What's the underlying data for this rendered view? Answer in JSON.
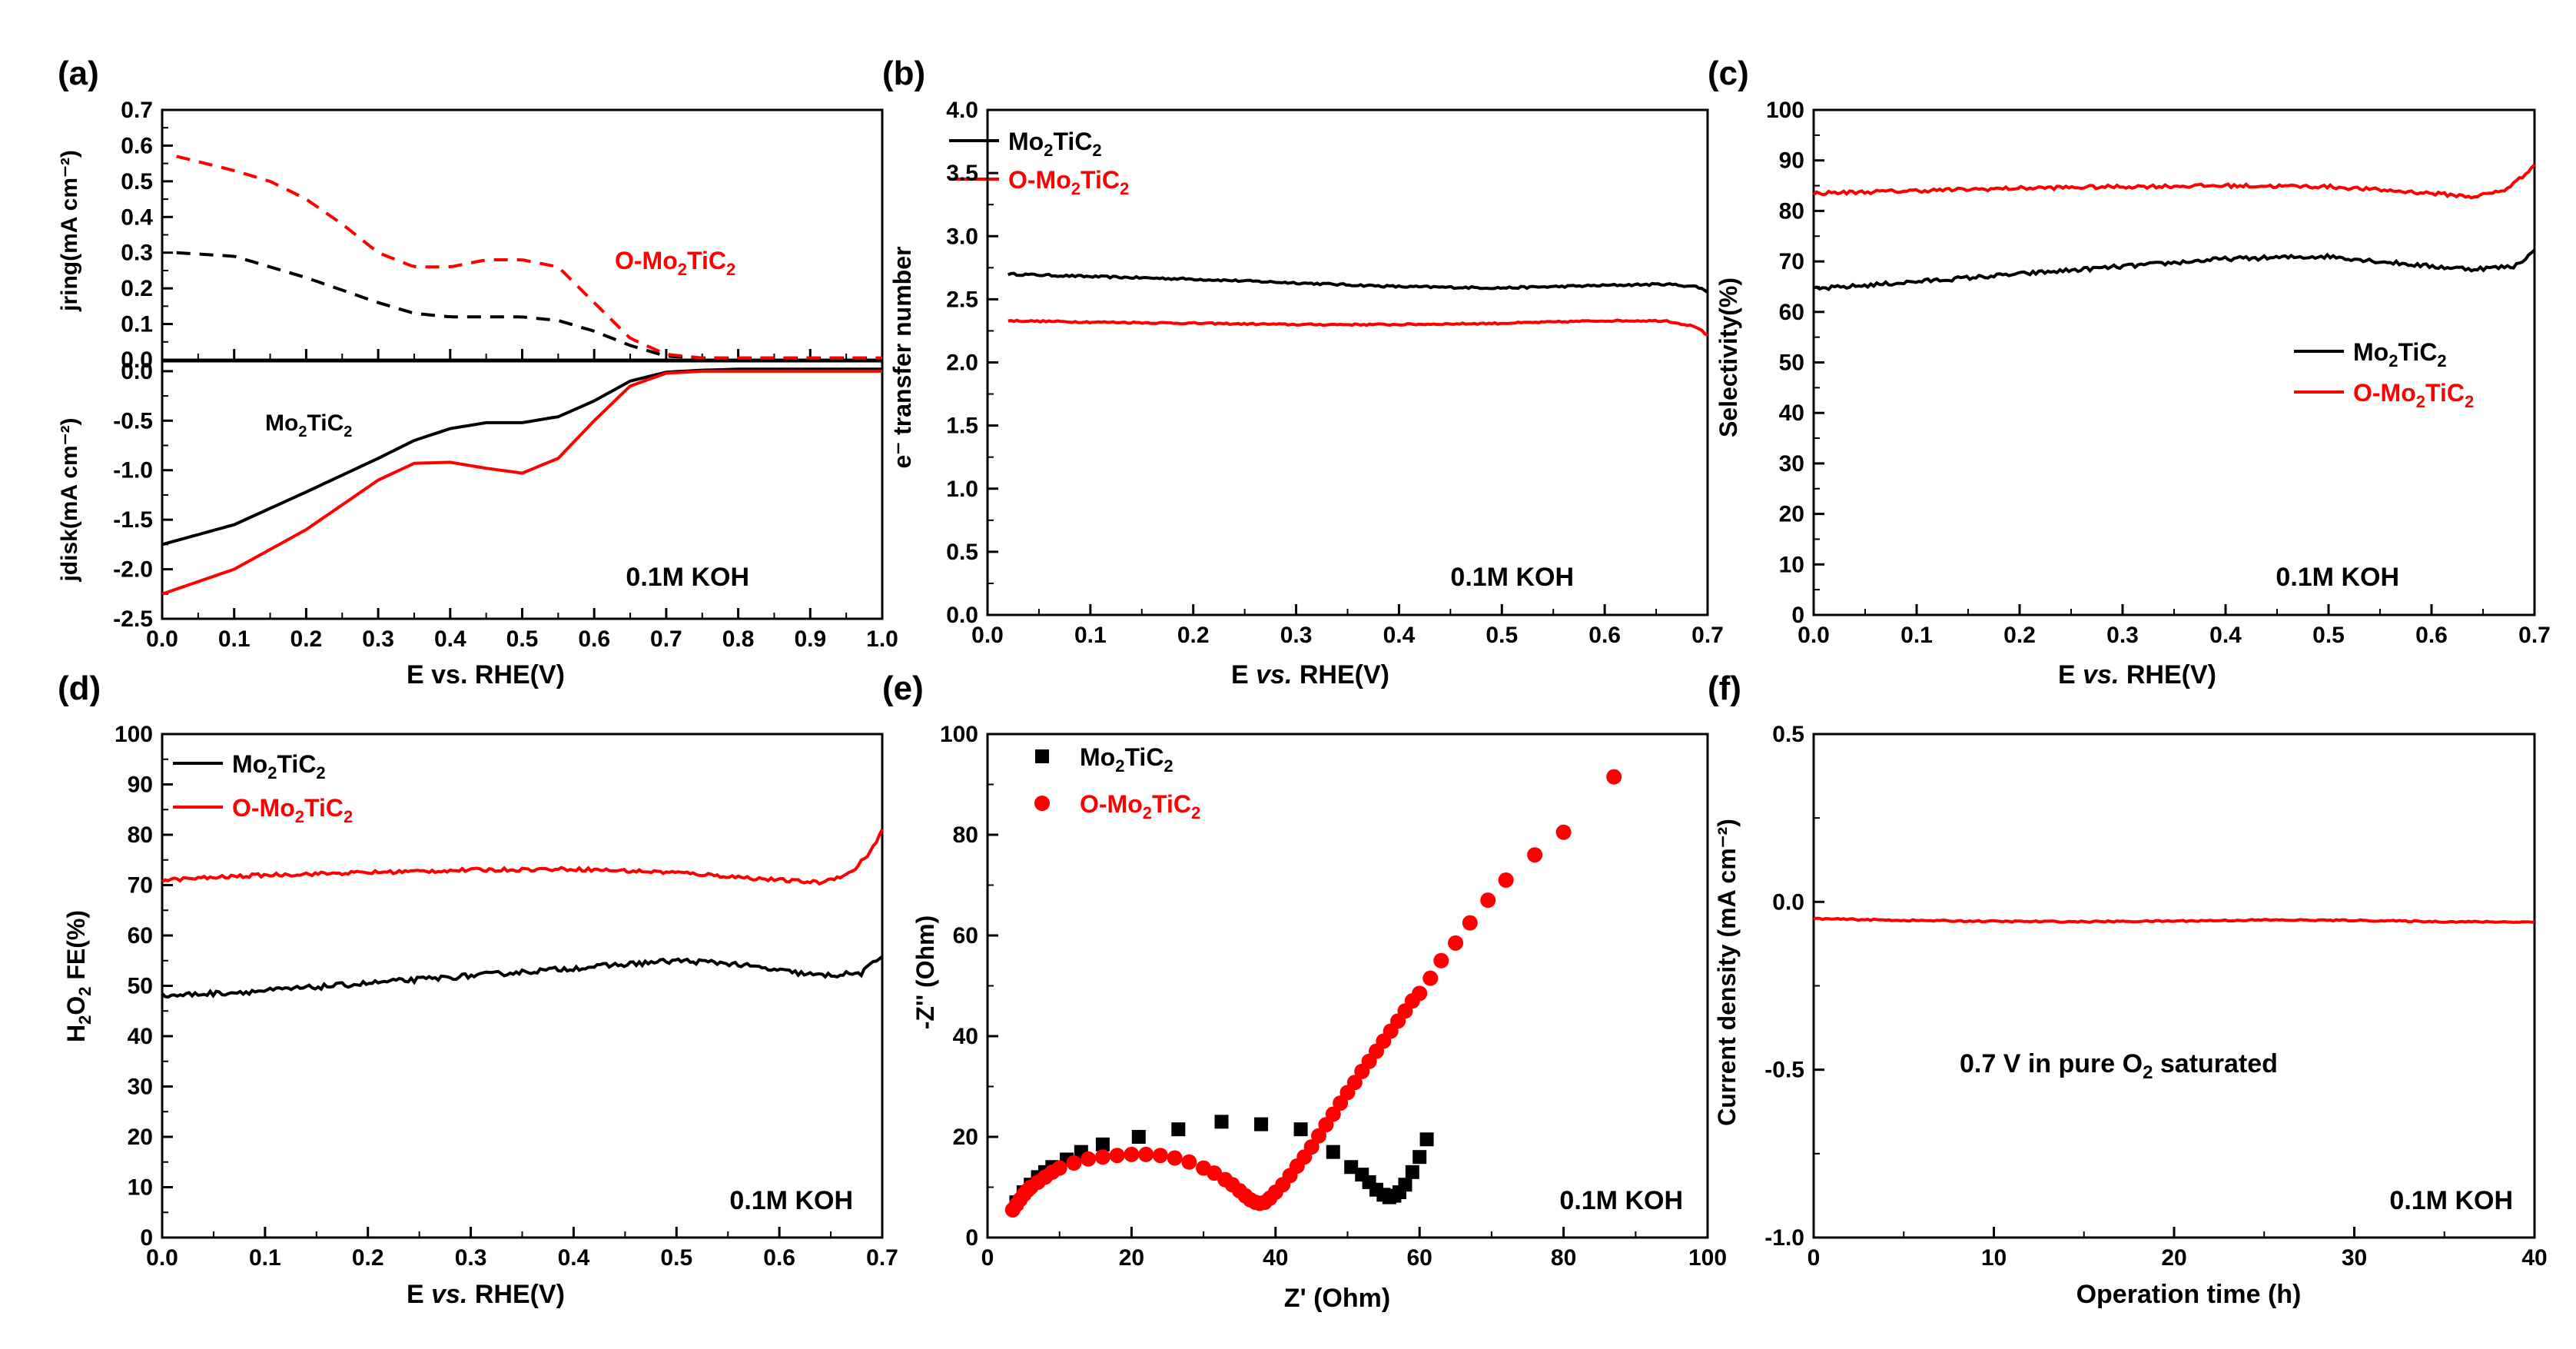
{
  "colors": {
    "black": "#000000",
    "red": "#ff0000"
  },
  "chart_data": [
    {
      "id": "a",
      "panel_label": "(a)",
      "type": "line",
      "xlabel": "E vs. RHE(V)",
      "xlim": [
        0.0,
        1.0
      ],
      "xticks": [
        "0.0",
        "0.1",
        "0.2",
        "0.3",
        "0.4",
        "0.5",
        "0.6",
        "0.7",
        "0.8",
        "0.9",
        "1.0"
      ],
      "note": "0.1M KOH",
      "top": {
        "ylabel": "jring(mA cm⁻²)",
        "ylim": [
          0.0,
          0.7
        ],
        "yticks": [
          "0.0",
          "0.1",
          "0.2",
          "0.3",
          "0.4",
          "0.5",
          "0.6",
          "0.7"
        ],
        "series": [
          {
            "name": "Mo2TiC2",
            "color": "#000000",
            "dashed": true,
            "x": [
              0.02,
              0.1,
              0.2,
              0.3,
              0.35,
              0.4,
              0.45,
              0.5,
              0.55,
              0.6,
              0.65,
              0.7,
              0.75,
              0.8,
              0.9,
              1.0
            ],
            "y": [
              0.3,
              0.29,
              0.23,
              0.16,
              0.13,
              0.12,
              0.12,
              0.12,
              0.11,
              0.08,
              0.04,
              0.01,
              0.005,
              0.005,
              0.005,
              0.005
            ]
          },
          {
            "name": "O-Mo2TiC2",
            "color": "#ff0000",
            "dashed": true,
            "x": [
              0.02,
              0.1,
              0.15,
              0.2,
              0.25,
              0.3,
              0.35,
              0.4,
              0.45,
              0.5,
              0.55,
              0.6,
              0.65,
              0.7,
              0.75,
              0.8,
              0.9,
              1.0
            ],
            "y": [
              0.57,
              0.53,
              0.5,
              0.45,
              0.38,
              0.3,
              0.26,
              0.26,
              0.28,
              0.28,
              0.26,
              0.16,
              0.06,
              0.015,
              0.005,
              0.005,
              0.005,
              0.005
            ]
          }
        ],
        "annotation": {
          "text_main": "O-Mo",
          "sub1": "2",
          "text_mid": "TiC",
          "sub2": "2",
          "color": "#ff0000"
        }
      },
      "bottom": {
        "ylabel": "jdisk(mA cm⁻²)",
        "ylim": [
          -2.5,
          0.1
        ],
        "yticks": [
          "-2.5",
          "-2.0",
          "-1.5",
          "-1.0",
          "-0.5",
          "0.0"
        ],
        "series": [
          {
            "name": "Mo2TiC2",
            "color": "#000000",
            "dashed": false,
            "x": [
              0.0,
              0.1,
              0.2,
              0.3,
              0.35,
              0.4,
              0.45,
              0.5,
              0.55,
              0.6,
              0.65,
              0.7,
              0.75,
              0.8,
              0.9,
              1.0
            ],
            "y": [
              -1.75,
              -1.55,
              -1.22,
              -0.88,
              -0.7,
              -0.58,
              -0.52,
              -0.52,
              -0.46,
              -0.3,
              -0.1,
              -0.01,
              0.01,
              0.02,
              0.02,
              0.02
            ]
          },
          {
            "name": "O-Mo2TiC2",
            "color": "#ff0000",
            "dashed": false,
            "x": [
              0.0,
              0.1,
              0.2,
              0.3,
              0.35,
              0.4,
              0.45,
              0.5,
              0.55,
              0.6,
              0.65,
              0.7,
              0.75,
              0.8,
              0.9,
              1.0
            ],
            "y": [
              -2.25,
              -2.0,
              -1.6,
              -1.1,
              -0.93,
              -0.92,
              -0.98,
              -1.03,
              -0.88,
              -0.5,
              -0.15,
              -0.02,
              0.0,
              0.0,
              0.0,
              0.0
            ]
          }
        ],
        "annotation": {
          "text_main": "Mo",
          "sub1": "2",
          "text_mid": "TiC",
          "sub2": "2",
          "color": "#000000"
        }
      }
    },
    {
      "id": "b",
      "panel_label": "(b)",
      "type": "line",
      "xlabel": "E vs. RHE(V)",
      "xlim": [
        0.0,
        0.7
      ],
      "xticks": [
        "0.0",
        "0.1",
        "0.2",
        "0.3",
        "0.4",
        "0.5",
        "0.6",
        "0.7"
      ],
      "ylabel": "e⁻ transfer number",
      "ylim": [
        0.0,
        4.0
      ],
      "yticks": [
        "0.0",
        "0.5",
        "1.0",
        "1.5",
        "2.0",
        "2.5",
        "3.0",
        "3.5",
        "4.0"
      ],
      "note": "0.1M KOH",
      "legend": [
        "Mo2TiC2",
        "O-Mo2TiC2"
      ],
      "series": [
        {
          "name": "Mo2TiC2",
          "color": "#000000",
          "noise": 0.008,
          "x": [
            0.02,
            0.1,
            0.2,
            0.3,
            0.4,
            0.5,
            0.6,
            0.66,
            0.69,
            0.7
          ],
          "y": [
            2.7,
            2.68,
            2.66,
            2.63,
            2.6,
            2.59,
            2.61,
            2.62,
            2.6,
            2.56
          ]
        },
        {
          "name": "O-Mo2TiC2",
          "color": "#ff0000",
          "noise": 0.006,
          "x": [
            0.02,
            0.1,
            0.2,
            0.3,
            0.4,
            0.5,
            0.6,
            0.66,
            0.69,
            0.7
          ],
          "y": [
            2.33,
            2.32,
            2.31,
            2.3,
            2.3,
            2.31,
            2.33,
            2.33,
            2.28,
            2.21
          ]
        }
      ]
    },
    {
      "id": "c",
      "panel_label": "(c)",
      "type": "line",
      "xlabel": "E vs. RHE(V)",
      "xlim": [
        0.0,
        0.7
      ],
      "xticks": [
        "0.0",
        "0.1",
        "0.2",
        "0.3",
        "0.4",
        "0.5",
        "0.6",
        "0.7"
      ],
      "ylabel": "Selectivity(%)",
      "ylim": [
        0,
        100
      ],
      "yticks": [
        "0",
        "10",
        "20",
        "30",
        "40",
        "50",
        "60",
        "70",
        "80",
        "90",
        "100"
      ],
      "note": "0.1M KOH",
      "legend": [
        "Mo2TiC2",
        "O-Mo2TiC2"
      ],
      "series": [
        {
          "name": "Mo2TiC2",
          "color": "#000000",
          "noise": 0.4,
          "x": [
            0.0,
            0.1,
            0.2,
            0.3,
            0.4,
            0.5,
            0.55,
            0.6,
            0.64,
            0.68,
            0.7
          ],
          "y": [
            64.5,
            66,
            67.5,
            69,
            70.5,
            71,
            70,
            69,
            68.5,
            69,
            72
          ]
        },
        {
          "name": "O-Mo2TiC2",
          "color": "#ff0000",
          "noise": 0.35,
          "x": [
            0.0,
            0.1,
            0.2,
            0.3,
            0.4,
            0.5,
            0.6,
            0.64,
            0.67,
            0.69,
            0.7
          ],
          "y": [
            83.5,
            84,
            84.5,
            84.8,
            85,
            84.8,
            83.5,
            82.8,
            84,
            87,
            89.5
          ]
        }
      ]
    },
    {
      "id": "d",
      "panel_label": "(d)",
      "type": "line",
      "xlabel": "E vs. RHE(V)",
      "xlim": [
        0.0,
        0.7
      ],
      "xticks": [
        "0.0",
        "0.1",
        "0.2",
        "0.3",
        "0.4",
        "0.5",
        "0.6",
        "0.7"
      ],
      "ylabel": "H2O2 FE(%)",
      "ylim": [
        0,
        100
      ],
      "yticks": [
        "0",
        "10",
        "20",
        "30",
        "40",
        "50",
        "60",
        "70",
        "80",
        "90",
        "100"
      ],
      "note": "0.1M KOH",
      "legend": [
        "Mo2TiC2",
        "O-Mo2TiC2"
      ],
      "series": [
        {
          "name": "Mo2TiC2",
          "color": "#000000",
          "noise": 0.5,
          "x": [
            0.0,
            0.05,
            0.1,
            0.2,
            0.3,
            0.4,
            0.5,
            0.55,
            0.6,
            0.64,
            0.68,
            0.7
          ],
          "y": [
            48,
            48.5,
            49,
            50.5,
            52,
            53.5,
            55,
            54.5,
            53,
            52,
            52.5,
            56
          ]
        },
        {
          "name": "O-Mo2TiC2",
          "color": "#ff0000",
          "noise": 0.35,
          "x": [
            0.0,
            0.1,
            0.2,
            0.3,
            0.4,
            0.5,
            0.6,
            0.64,
            0.67,
            0.69,
            0.7
          ],
          "y": [
            71,
            72,
            72.5,
            73,
            73.2,
            72.5,
            71,
            70.5,
            72.5,
            77,
            81
          ]
        }
      ]
    },
    {
      "id": "e",
      "panel_label": "(e)",
      "type": "scatter",
      "xlabel": "Z' (Ohm)",
      "xlim": [
        0,
        100
      ],
      "xticks": [
        "0",
        "20",
        "40",
        "60",
        "80",
        "100"
      ],
      "ylabel": "-Z'' (Ohm)",
      "ylim": [
        0,
        100
      ],
      "yticks": [
        "0",
        "20",
        "40",
        "60",
        "80",
        "100"
      ],
      "note": "0.1M KOH",
      "legend": [
        "Mo2TiC2",
        "O-Mo2TiC2"
      ],
      "series": [
        {
          "name": "Mo2TiC2",
          "color": "#000000",
          "marker": "square",
          "x": [
            4,
            5,
            6,
            7,
            8,
            9,
            11,
            13,
            16,
            21,
            26.5,
            32.5,
            38,
            43.5,
            48,
            50.5,
            52,
            53,
            54,
            55,
            55.8,
            56.5,
            57.2,
            58,
            59,
            60,
            61
          ],
          "y": [
            7,
            9,
            10.5,
            12,
            13,
            14,
            15.5,
            17,
            18.5,
            20,
            21.5,
            23,
            22.5,
            21.5,
            17,
            14,
            12.5,
            11,
            9.5,
            8.5,
            8,
            8.3,
            9,
            10.5,
            13,
            16,
            19.5
          ]
        },
        {
          "name": "O-Mo2TiC2",
          "color": "#ff0000",
          "marker": "circle",
          "x": [
            3.5,
            4,
            4.5,
            5,
            5.5,
            6,
            7,
            8,
            9,
            10,
            12,
            14,
            16,
            18,
            20,
            22,
            24,
            26,
            28,
            30,
            31.5,
            33,
            34,
            35,
            35.8,
            36.5,
            37.2,
            37.8,
            38.5,
            39.2,
            40,
            41,
            42,
            43,
            44,
            45,
            46,
            47,
            48,
            49,
            50,
            51,
            52,
            53,
            54,
            55,
            56,
            57,
            58,
            59,
            60,
            61.5,
            63,
            65,
            67,
            69.5,
            72,
            76,
            80,
            87
          ],
          "y": [
            5.5,
            6.5,
            7.5,
            8.5,
            9.3,
            10,
            11,
            12,
            13,
            13.8,
            14.8,
            15.6,
            16,
            16.3,
            16.5,
            16.5,
            16.3,
            15.8,
            15,
            13.8,
            12.8,
            11.5,
            10.5,
            9.3,
            8.3,
            7.5,
            7,
            6.8,
            7,
            7.8,
            9,
            10.5,
            12.3,
            14.2,
            16,
            18,
            20.2,
            22.4,
            24.5,
            26.7,
            28.8,
            30.8,
            33,
            35,
            37,
            39,
            41,
            43,
            45,
            47,
            48.5,
            51.5,
            55,
            58.5,
            62.5,
            67,
            71,
            76,
            80.5,
            91.5
          ]
        }
      ]
    },
    {
      "id": "f",
      "panel_label": "(f)",
      "type": "line",
      "xlabel": "Operation time (h)",
      "xlim": [
        0,
        40
      ],
      "xticks": [
        "0",
        "10",
        "20",
        "30",
        "40"
      ],
      "ylabel": "Current density (mA cm⁻²)",
      "ylim": [
        -1.0,
        0.5
      ],
      "yticks": [
        "-1.0",
        "-0.5",
        "0.0",
        "0.5"
      ],
      "note": "0.1M KOH",
      "annotation": "0.7 V in pure O2 saturated",
      "series": [
        {
          "name": "O-Mo2TiC2",
          "color": "#ff0000",
          "noise": 0.002,
          "x": [
            0,
            5,
            10,
            15,
            20,
            25,
            30,
            35,
            40
          ],
          "y": [
            -0.05,
            -0.055,
            -0.058,
            -0.059,
            -0.057,
            -0.054,
            -0.055,
            -0.059,
            -0.06
          ]
        }
      ]
    }
  ]
}
